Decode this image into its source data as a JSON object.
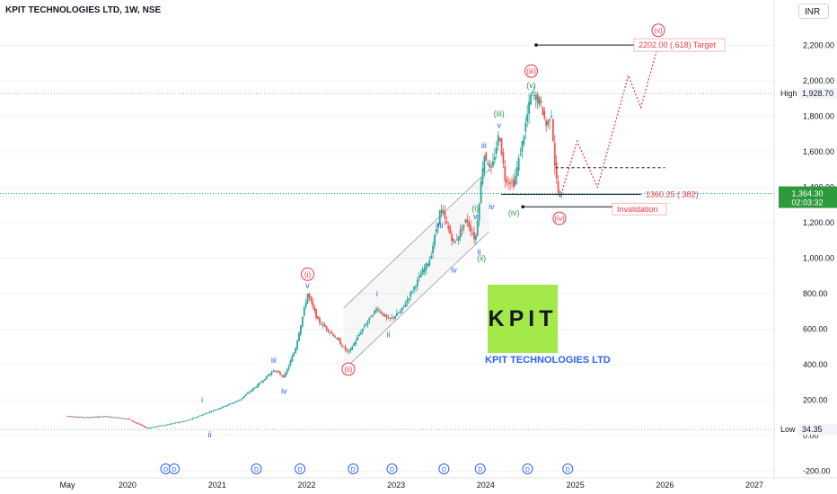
{
  "header": {
    "title": "KPIT TECHNOLOGIES LTD, 1W, NSE"
  },
  "currency_button": "INR",
  "logo": {
    "text": "KPIT",
    "caption": "KPIT TECHNOLOGIES LTD",
    "bg_color": "#a4e94a"
  },
  "colors": {
    "bull": "#26a69a",
    "bear": "#ef5350",
    "blue_wave": "#2962ff",
    "green_wave": "#2e9a3e",
    "red_wave": "#f23645"
  },
  "chart_data": {
    "type": "candlestick",
    "title": "KPIT TECHNOLOGIES LTD, 1W, NSE",
    "ylim": [
      -200,
      2400
    ],
    "y_ticks": [
      -200,
      0,
      200,
      400,
      600,
      800,
      1000,
      1200,
      1400,
      1600,
      1800,
      2000,
      2200
    ],
    "y_tick_labels": [
      "-200.00",
      "0.00",
      "200.00",
      "400.00",
      "600.00",
      "800.00",
      "1,000.00",
      "1,200.00",
      "1,400.00",
      "1,600.00",
      "1,800.00",
      "2,000.00",
      "2,200.00"
    ],
    "x_labels": [
      "May",
      "2020",
      "2021",
      "2022",
      "2023",
      "2024",
      "2025",
      "2026",
      "2027"
    ],
    "x_label_dates": [
      "2019-05-01",
      "2020-01-01",
      "2021-01-01",
      "2022-01-01",
      "2023-01-01",
      "2024-01-01",
      "2025-01-01",
      "2026-01-01",
      "2027-01-01"
    ],
    "price_path": [
      [
        "2019-05-01",
        110
      ],
      [
        "2019-07-15",
        102
      ],
      [
        "2019-10-01",
        108
      ],
      [
        "2020-01-01",
        95
      ],
      [
        "2020-03-20",
        42
      ],
      [
        "2020-06-01",
        60
      ],
      [
        "2020-09-01",
        85
      ],
      [
        "2020-11-01",
        118
      ],
      [
        "2021-01-01",
        150
      ],
      [
        "2021-04-01",
        200
      ],
      [
        "2021-06-15",
        285
      ],
      [
        "2021-08-20",
        370
      ],
      [
        "2021-10-01",
        330
      ],
      [
        "2021-11-15",
        485
      ],
      [
        "2022-01-05",
        800
      ],
      [
        "2022-02-15",
        650
      ],
      [
        "2022-04-15",
        575
      ],
      [
        "2022-06-20",
        465
      ],
      [
        "2022-08-20",
        610
      ],
      [
        "2022-10-15",
        720
      ],
      [
        "2022-12-01",
        650
      ],
      [
        "2023-01-20",
        700
      ],
      [
        "2023-04-01",
        880
      ],
      [
        "2023-05-20",
        1000
      ],
      [
        "2023-07-01",
        1280
      ],
      [
        "2023-08-25",
        1080
      ],
      [
        "2023-10-15",
        1220
      ],
      [
        "2023-11-20",
        1100
      ],
      [
        "2023-12-25",
        1590
      ],
      [
        "2024-01-25",
        1490
      ],
      [
        "2024-02-25",
        1710
      ],
      [
        "2024-03-20",
        1450
      ],
      [
        "2024-04-25",
        1420
      ],
      [
        "2024-05-25",
        1620
      ],
      [
        "2024-07-05",
        1928.7
      ],
      [
        "2024-08-10",
        1880
      ],
      [
        "2024-09-05",
        1745
      ],
      [
        "2024-09-25",
        1820
      ],
      [
        "2024-10-10",
        1510
      ],
      [
        "2024-10-25",
        1340
      ],
      [
        "2024-11-10",
        1364.3
      ]
    ],
    "projection_path": [
      [
        "2024-11-05",
        1364
      ],
      [
        "2025-01-08",
        1660
      ],
      [
        "2025-04-01",
        1400
      ],
      [
        "2025-08-05",
        2030
      ],
      [
        "2025-09-25",
        1850
      ],
      [
        "2025-12-05",
        2202
      ]
    ],
    "horizontal_levels": [
      {
        "name": "High",
        "value": 1928.7,
        "label": "1,928.70"
      },
      {
        "name": "Low",
        "value": 34.35,
        "label": "34.35"
      },
      {
        "name": "Last",
        "value": 1364.3,
        "label": "1,364.30",
        "timer": "02:03:32"
      },
      {
        "name": "fib_382",
        "value": 1360.25,
        "label": "1360.25 (.382)"
      },
      {
        "name": "target",
        "value": 2202.0,
        "label": "2202.00 (.618) Target"
      },
      {
        "name": "invalidation",
        "value": 1290,
        "label": "Invalidation"
      },
      {
        "name": "dashed_level",
        "value": 1510
      }
    ],
    "wave_labels": [
      {
        "text": "(i)",
        "date": "2022-01-05",
        "value": 910,
        "style": "circle-red"
      },
      {
        "text": "v",
        "date": "2022-01-05",
        "value": 845,
        "style": "blue"
      },
      {
        "text": "(ii)",
        "date": "2022-06-20",
        "value": 375,
        "style": "circle-red"
      },
      {
        "text": "(iii)",
        "date": "2024-07-05",
        "value": 2055,
        "style": "circle-red"
      },
      {
        "text": "(iv)",
        "date": "2024-10-28",
        "value": 1225,
        "style": "circle-red"
      },
      {
        "text": "(v)",
        "date": "2025-12-05",
        "value": 2285,
        "style": "circle-red"
      },
      {
        "text": "(v)",
        "date": "2024-07-05",
        "value": 1975,
        "style": "green"
      },
      {
        "text": "(iii)",
        "date": "2024-02-25",
        "value": 1815,
        "style": "green"
      },
      {
        "text": "(iv)",
        "date": "2024-04-25",
        "value": 1255,
        "style": "green"
      },
      {
        "text": "(i)",
        "date": "2023-11-20",
        "value": 1280,
        "style": "green"
      },
      {
        "text": "(ii)",
        "date": "2023-12-15",
        "value": 1000,
        "style": "green"
      },
      {
        "text": "v",
        "date": "2024-02-25",
        "value": 1750,
        "style": "blue"
      },
      {
        "text": "iii",
        "date": "2023-12-25",
        "value": 1635,
        "style": "blue"
      },
      {
        "text": "iv",
        "date": "2024-01-25",
        "value": 1290,
        "style": "blue"
      },
      {
        "text": "v",
        "date": "2023-11-20",
        "value": 1235,
        "style": "blue"
      },
      {
        "text": "iii",
        "date": "2023-07-01",
        "value": 1185,
        "style": "blue"
      },
      {
        "text": "iv",
        "date": "2023-08-25",
        "value": 935,
        "style": "blue"
      },
      {
        "text": "ii",
        "date": "2023-12-05",
        "value": 1035,
        "style": "blue"
      },
      {
        "text": "i",
        "date": "2022-10-15",
        "value": 800,
        "style": "blue"
      },
      {
        "text": "ii",
        "date": "2022-12-01",
        "value": 570,
        "style": "blue"
      },
      {
        "text": "iii",
        "date": "2021-08-20",
        "value": 425,
        "style": "blue"
      },
      {
        "text": "iv",
        "date": "2021-10-01",
        "value": 250,
        "style": "blue"
      },
      {
        "text": "i",
        "date": "2020-11-01",
        "value": 200,
        "style": "blue"
      },
      {
        "text": "ii",
        "date": "2020-12-01",
        "value": 4,
        "style": "blue"
      }
    ],
    "dividend_markers": [
      "2020-06-05",
      "2020-07-10",
      "2021-06-10",
      "2021-12-05",
      "2022-07-10",
      "2022-12-15",
      "2023-07-15",
      "2023-12-10",
      "2024-06-20",
      "2024-12-01"
    ],
    "dividend_marker_label": "D",
    "price_label_high": "High",
    "price_label_low": "Low"
  }
}
